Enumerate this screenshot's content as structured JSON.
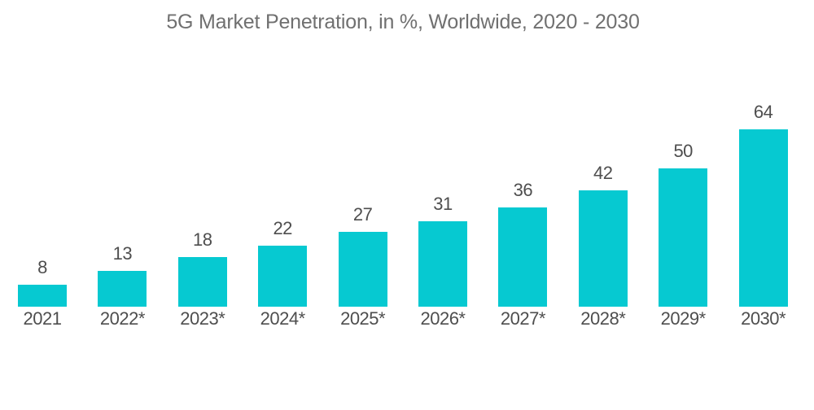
{
  "chart_data": {
    "type": "bar",
    "title": "5G Market Penetration, in %, Worldwide, 2020 - 2030",
    "categories": [
      "2021",
      "2022*",
      "2023*",
      "2024*",
      "2025*",
      "2026*",
      "2027*",
      "2028*",
      "2029*",
      "2030*"
    ],
    "values": [
      8,
      13,
      18,
      22,
      27,
      31,
      36,
      42,
      50,
      64
    ],
    "xlabel": "",
    "ylabel": "",
    "ylim": [
      0,
      70
    ],
    "grid": false,
    "legend": false,
    "value_labels_shown": true,
    "colors": {
      "bar": "#06C9D1",
      "value_label": "#4E4E4E",
      "category_label": "#4E4E4E",
      "title": "#707070",
      "background": "#FFFFFF"
    }
  }
}
